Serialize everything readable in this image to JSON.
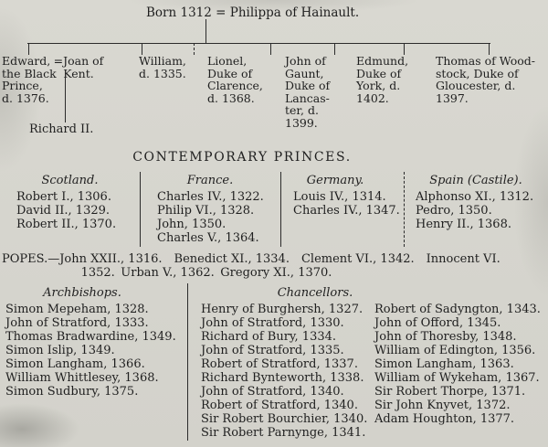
{
  "page": {
    "bg": "#d8d6cf",
    "ink": "#1f1f1f"
  },
  "tree": {
    "root": "Born 1312 = Philippa of Hainault.",
    "children": {
      "edward": "Edward,\nthe Black\nPrince,\nd. 1376.",
      "joan": "=Joan of\nKent.",
      "william": "William,\nd. 1335.",
      "lionel": "Lionel,\nDuke of\nClarence,\nd. 1368.",
      "john": "John of\nGaunt,\nDuke of\nLancas-\nter, d.\n1399.",
      "edmund": "Edmund,\nDuke of\nYork, d.\n1402.",
      "thomas": "Thomas of Wood-\nstock, Duke of\nGloucester, d.\n1397."
    },
    "grandchild": "Richard II."
  },
  "princes": {
    "heading": "CONTEMPORARY PRINCES.",
    "columns": [
      {
        "title": "Scotland.",
        "items": [
          "Robert I., 1306.",
          "David II., 1329.",
          "Robert II., 1370."
        ]
      },
      {
        "title": "France.",
        "items": [
          "Charles IV., 1322.",
          "Philip VI., 1328.",
          "John, 1350.",
          "Charles V., 1364."
        ]
      },
      {
        "title": "Germany.",
        "items": [
          "Louis IV., 1314.",
          "Charles IV., 1347."
        ]
      },
      {
        "title": "Spain (Castile).",
        "items": [
          "Alphonso XI., 1312.",
          "Pedro, 1350.",
          "Henry II., 1368."
        ]
      }
    ]
  },
  "popes": {
    "line1": "POPES.—John XXII., 1316. Benedict XI., 1334. Clement VI., 1342. Innocent VI.",
    "line2": "1352. Urban V., 1362. Gregory XI., 1370."
  },
  "officials": {
    "archbishops": {
      "title": "Archbishops.",
      "items": [
        "Simon Mepeham, 1328.",
        "John of Stratford, 1333.",
        "Thomas Bradwardine, 1349.",
        "Simon Islip, 1349.",
        "Simon Langham, 1366.",
        "William Whittlesey, 1368.",
        "Simon Sudbury, 1375."
      ]
    },
    "chancellors": {
      "title": "Chancellors.",
      "col1": [
        "Henry of Burghersh, 1327.",
        "John of Stratford, 1330.",
        "Richard of Bury, 1334.",
        "John of Stratford, 1335.",
        "Robert of Stratford, 1337.",
        "Richard Bynteworth, 1338.",
        "John of Stratford, 1340.",
        "Robert of Stratford, 1340.",
        "Sir Robert Bourchier, 1340.",
        "Sir Robert Parnynge, 1341."
      ],
      "col2": [
        "Robert of Sadyngton, 1343.",
        "John of Offord, 1345.",
        "John of Thoresby, 1348.",
        "William of Edington, 1356.",
        "Simon Langham, 1363.",
        "William of Wykeham, 1367.",
        "Sir Robert Thorpe, 1371.",
        "Sir John Knyvet, 1372.",
        "Adam Houghton, 1377."
      ]
    }
  }
}
